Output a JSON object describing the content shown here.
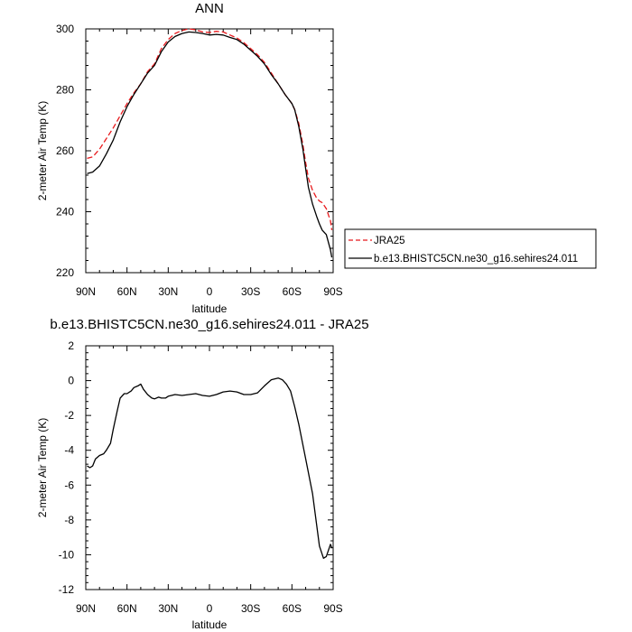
{
  "chart_data": [
    {
      "type": "line",
      "title": "ANN",
      "xlabel": "latitude",
      "ylabel": "2-meter Air Temp (K)",
      "xlim": [
        90,
        -90
      ],
      "ylim": [
        220,
        300
      ],
      "x_ticks": [
        90,
        60,
        30,
        0,
        -30,
        -60,
        -90
      ],
      "x_tick_labels": [
        "90N",
        "60N",
        "30N",
        "0",
        "30S",
        "60S",
        "90S"
      ],
      "y_ticks": [
        220,
        240,
        260,
        280,
        300
      ],
      "y_tick_labels": [
        "220",
        "240",
        "260",
        "280",
        "300"
      ],
      "grid": false,
      "legend_position": "right, outside the plot",
      "series": [
        {
          "name": "JRA25",
          "color": "#e8191c",
          "dash": "dashed",
          "x": [
            89,
            85,
            80,
            75,
            70,
            65,
            60,
            55,
            50,
            45,
            40,
            35,
            30,
            25,
            20,
            15,
            10,
            5,
            0,
            -5,
            -10,
            -15,
            -20,
            -25,
            -30,
            -35,
            -40,
            -45,
            -50,
            -55,
            -60,
            -62,
            -65,
            -68,
            -70,
            -72,
            -75,
            -78,
            -80,
            -82,
            -85,
            -88,
            -89
          ],
          "y": [
            257.5,
            258,
            260.5,
            264,
            267.5,
            271.5,
            275.5,
            279,
            282,
            286,
            288.5,
            293.5,
            296.5,
            298.5,
            299.5,
            300,
            299.7,
            299,
            298.8,
            299.2,
            299,
            298,
            297,
            295.5,
            293.5,
            291.5,
            289,
            285.5,
            282,
            278.5,
            275.5,
            273.5,
            269,
            262,
            256,
            251,
            247,
            244.5,
            243.5,
            243,
            241,
            237,
            234
          ]
        },
        {
          "name": "b.e13.BHISTC5CN.ne30_g16.sehires24.011",
          "color": "#000000",
          "dash": "solid",
          "x": [
            89,
            85,
            80,
            75,
            70,
            65,
            60,
            55,
            50,
            45,
            40,
            35,
            30,
            25,
            20,
            15,
            10,
            5,
            0,
            -5,
            -10,
            -15,
            -20,
            -25,
            -30,
            -35,
            -40,
            -45,
            -50,
            -55,
            -60,
            -62,
            -65,
            -68,
            -70,
            -72,
            -75,
            -78,
            -80,
            -82,
            -85,
            -88,
            -89
          ],
          "y": [
            252.5,
            253,
            255,
            259,
            263.5,
            269.5,
            274.5,
            278.5,
            282,
            285.5,
            288,
            292.5,
            295.7,
            297.5,
            298.5,
            299,
            298.8,
            298.5,
            298,
            298.2,
            298,
            297.2,
            296.5,
            295,
            293,
            291,
            288.5,
            285,
            282,
            278.5,
            275.5,
            273.5,
            268,
            260.5,
            254,
            248,
            242.5,
            238.5,
            236,
            234,
            232.5,
            227.5,
            225
          ]
        }
      ]
    },
    {
      "type": "line",
      "title": "b.e13.BHISTC5CN.ne30_g16.sehires24.011 - JRA25",
      "xlabel": "latitude",
      "ylabel": "2-meter Air Temp (K)",
      "xlim": [
        90,
        -90
      ],
      "ylim": [
        -12,
        2
      ],
      "x_ticks": [
        90,
        60,
        30,
        0,
        -30,
        -60,
        -90
      ],
      "x_tick_labels": [
        "90N",
        "60N",
        "30N",
        "0",
        "30S",
        "60S",
        "90S"
      ],
      "y_ticks": [
        -12,
        -10,
        -8,
        -6,
        -4,
        -2,
        0,
        2
      ],
      "y_tick_labels": [
        "-12",
        "-10",
        "-8",
        "-6",
        "-4",
        "-2",
        "0",
        "2"
      ],
      "grid": false,
      "series": [
        {
          "color": "#000000",
          "dash": "solid",
          "x": [
            89,
            87,
            85,
            83,
            80,
            77,
            75,
            72,
            70,
            67,
            65,
            62,
            60,
            57,
            55,
            52,
            50,
            48,
            45,
            42,
            40,
            37,
            35,
            32,
            30,
            25,
            20,
            15,
            10,
            5,
            0,
            -5,
            -10,
            -15,
            -20,
            -25,
            -30,
            -35,
            -40,
            -45,
            -50,
            -53,
            -56,
            -59,
            -62,
            -65,
            -70,
            -75,
            -80,
            -83,
            -85,
            -88,
            -89
          ],
          "y": [
            -4.9,
            -5,
            -4.9,
            -4.5,
            -4.3,
            -4.2,
            -4,
            -3.6,
            -2.8,
            -1.7,
            -1,
            -0.75,
            -0.75,
            -0.6,
            -0.4,
            -0.3,
            -0.2,
            -0.5,
            -0.8,
            -1,
            -1.05,
            -0.95,
            -1,
            -1,
            -0.9,
            -0.8,
            -0.85,
            -0.8,
            -0.75,
            -0.85,
            -0.9,
            -0.8,
            -0.65,
            -0.6,
            -0.65,
            -0.8,
            -0.8,
            -0.7,
            -0.3,
            0.05,
            0.15,
            0.05,
            -0.2,
            -0.6,
            -1.5,
            -2.5,
            -4.5,
            -6.5,
            -9.5,
            -10.2,
            -10.1,
            -9.4,
            -9.6
          ]
        }
      ]
    }
  ]
}
